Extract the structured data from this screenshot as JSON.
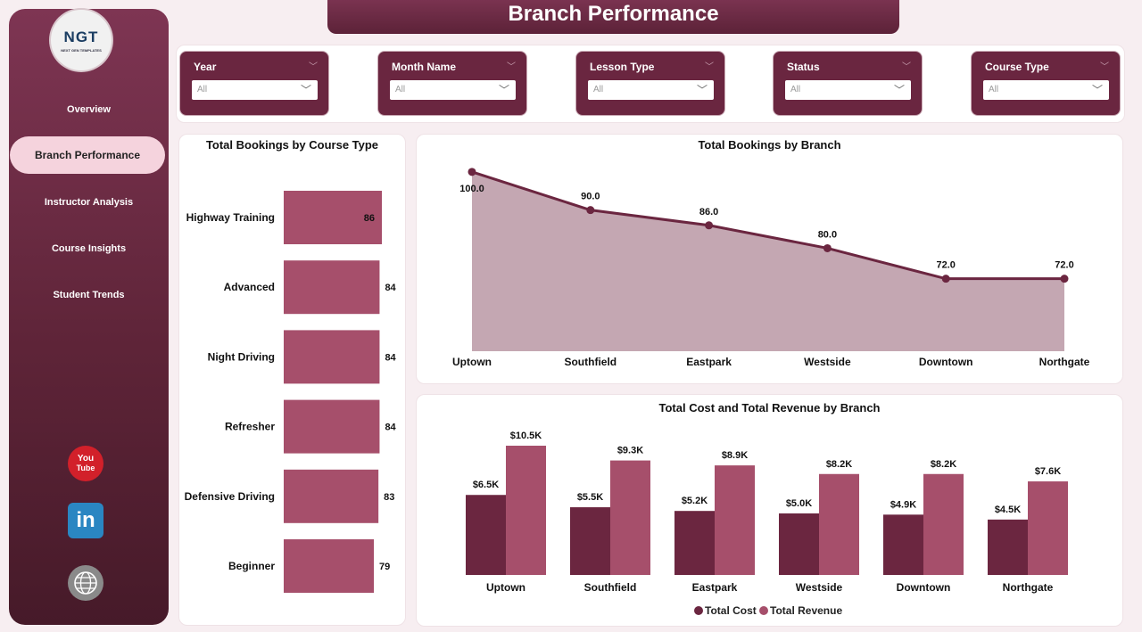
{
  "header": {
    "title": "Branch Performance"
  },
  "sidebar": {
    "logo": {
      "mark": "NGT",
      "tagline": "NEXT GEN TEMPLATES"
    },
    "items": [
      {
        "label": "Overview"
      },
      {
        "label": "Branch Performance",
        "active": true
      },
      {
        "label": "Instructor Analysis"
      },
      {
        "label": "Course Insights"
      },
      {
        "label": "Student Trends"
      }
    ],
    "social": {
      "youtube_top": "You",
      "youtube_bottom": "Tube",
      "linkedin": "in"
    }
  },
  "filters": [
    {
      "title": "Year",
      "value": "All"
    },
    {
      "title": "Month Name",
      "value": "All"
    },
    {
      "title": "Lesson Type",
      "value": "All"
    },
    {
      "title": "Status",
      "value": "All"
    },
    {
      "title": "Course Type",
      "value": "All"
    }
  ],
  "colors": {
    "maroon": "#6b2640",
    "rose": "#a64f6b",
    "area_fill": "#c4a7b2",
    "line": "#6b2640"
  },
  "chart_data": [
    {
      "id": "bookings_by_course_type",
      "type": "bar",
      "orientation": "horizontal",
      "title": "Total Bookings by Course Type",
      "categories": [
        "Highway Training",
        "Advanced",
        "Night Driving",
        "Refresher",
        "Defensive Driving",
        "Beginner"
      ],
      "values": [
        86,
        84,
        84,
        84,
        83,
        79
      ]
    },
    {
      "id": "bookings_by_branch",
      "type": "area",
      "title": "Total Bookings by Branch",
      "categories": [
        "Uptown",
        "Southfield",
        "Eastpark",
        "Westside",
        "Downtown",
        "Northgate"
      ],
      "values": [
        100.0,
        90.0,
        86.0,
        80.0,
        72.0,
        72.0
      ],
      "value_labels": [
        "100.0",
        "90.0",
        "86.0",
        "80.0",
        "72.0",
        "72.0"
      ]
    },
    {
      "id": "cost_revenue_by_branch",
      "type": "bar",
      "title": "Total Cost and Total Revenue by Branch",
      "categories": [
        "Uptown",
        "Southfield",
        "Eastpark",
        "Westside",
        "Downtown",
        "Northgate"
      ],
      "series": [
        {
          "name": "Total Cost",
          "values": [
            6.5,
            5.5,
            5.2,
            5.0,
            4.9,
            4.5
          ],
          "labels": [
            "$6.5K",
            "$5.5K",
            "$5.2K",
            "$5.0K",
            "$4.9K",
            "$4.5K"
          ]
        },
        {
          "name": "Total Revenue",
          "values": [
            10.5,
            9.3,
            8.9,
            8.2,
            8.2,
            7.6
          ],
          "labels": [
            "$10.5K",
            "$9.3K",
            "$8.9K",
            "$8.2K",
            "$8.2K",
            "$7.6K"
          ]
        }
      ],
      "legend": "bottom"
    }
  ]
}
